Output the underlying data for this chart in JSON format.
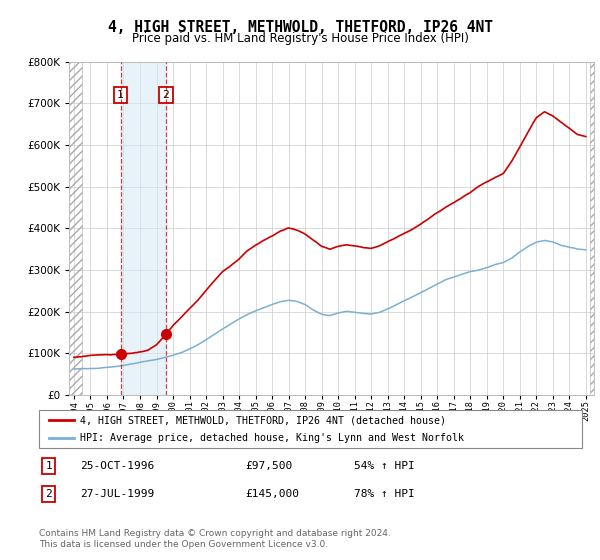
{
  "title": "4, HIGH STREET, METHWOLD, THETFORD, IP26 4NT",
  "subtitle": "Price paid vs. HM Land Registry's House Price Index (HPI)",
  "sale1_date": 1996.82,
  "sale1_price": 97500,
  "sale1_label": "1",
  "sale2_date": 1999.57,
  "sale2_price": 145000,
  "sale2_label": "2",
  "hpi_color": "#7bafd4",
  "price_color": "#cc0000",
  "legend_line1": "4, HIGH STREET, METHWOLD, THETFORD, IP26 4NT (detached house)",
  "legend_line2": "HPI: Average price, detached house, King's Lynn and West Norfolk",
  "table_row1": [
    "1",
    "25-OCT-1996",
    "£97,500",
    "54% ↑ HPI"
  ],
  "table_row2": [
    "2",
    "27-JUL-1999",
    "£145,000",
    "78% ↑ HPI"
  ],
  "footnote": "Contains HM Land Registry data © Crown copyright and database right 2024.\nThis data is licensed under the Open Government Licence v3.0.",
  "ylim": [
    0,
    800000
  ],
  "xlim_start": 1993.7,
  "xlim_end": 2025.5,
  "hatch_end": 1994.5,
  "hatch_start_right": 2025.25,
  "prop_data_t": [
    1994.0,
    1994.5,
    1995.0,
    1995.5,
    1996.0,
    1996.82,
    1997.0,
    1997.5,
    1998.0,
    1998.5,
    1999.0,
    1999.57,
    2000.0,
    2000.5,
    2001.0,
    2001.5,
    2002.0,
    2002.5,
    2003.0,
    2003.5,
    2004.0,
    2004.5,
    2005.0,
    2005.5,
    2006.0,
    2006.5,
    2007.0,
    2007.5,
    2008.0,
    2008.5,
    2009.0,
    2009.5,
    2010.0,
    2010.5,
    2011.0,
    2011.5,
    2012.0,
    2012.5,
    2013.0,
    2013.5,
    2014.0,
    2014.5,
    2015.0,
    2015.5,
    2016.0,
    2016.5,
    2017.0,
    2017.5,
    2018.0,
    2018.5,
    2019.0,
    2019.5,
    2020.0,
    2020.5,
    2021.0,
    2021.5,
    2022.0,
    2022.5,
    2023.0,
    2023.5,
    2024.0,
    2024.5,
    2025.0
  ],
  "prop_data_v": [
    90000,
    92000,
    95000,
    96000,
    97000,
    97500,
    98000,
    100000,
    103000,
    108000,
    120000,
    145000,
    165000,
    185000,
    205000,
    225000,
    248000,
    272000,
    295000,
    310000,
    325000,
    345000,
    358000,
    370000,
    380000,
    392000,
    400000,
    395000,
    385000,
    370000,
    355000,
    348000,
    355000,
    358000,
    355000,
    352000,
    350000,
    355000,
    365000,
    375000,
    385000,
    395000,
    408000,
    422000,
    435000,
    448000,
    460000,
    472000,
    485000,
    500000,
    510000,
    520000,
    530000,
    560000,
    595000,
    630000,
    665000,
    680000,
    670000,
    655000,
    640000,
    625000,
    620000
  ],
  "hpi_data_t": [
    1994.0,
    1994.5,
    1995.0,
    1995.5,
    1996.0,
    1996.5,
    1997.0,
    1997.5,
    1998.0,
    1998.5,
    1999.0,
    1999.5,
    2000.0,
    2000.5,
    2001.0,
    2001.5,
    2002.0,
    2002.5,
    2003.0,
    2003.5,
    2004.0,
    2004.5,
    2005.0,
    2005.5,
    2006.0,
    2006.5,
    2007.0,
    2007.5,
    2008.0,
    2008.5,
    2009.0,
    2009.5,
    2010.0,
    2010.5,
    2011.0,
    2011.5,
    2012.0,
    2012.5,
    2013.0,
    2013.5,
    2014.0,
    2014.5,
    2015.0,
    2015.5,
    2016.0,
    2016.5,
    2017.0,
    2017.5,
    2018.0,
    2018.5,
    2019.0,
    2019.5,
    2020.0,
    2020.5,
    2021.0,
    2021.5,
    2022.0,
    2022.5,
    2023.0,
    2023.5,
    2024.0,
    2024.5,
    2025.0
  ],
  "hpi_data_v": [
    62000,
    63000,
    64000,
    65000,
    67000,
    69000,
    72000,
    76000,
    80000,
    83000,
    86000,
    90000,
    95000,
    102000,
    110000,
    120000,
    132000,
    145000,
    158000,
    170000,
    182000,
    193000,
    202000,
    210000,
    218000,
    225000,
    228000,
    225000,
    218000,
    205000,
    195000,
    192000,
    198000,
    202000,
    200000,
    197000,
    196000,
    200000,
    208000,
    218000,
    228000,
    238000,
    248000,
    258000,
    268000,
    278000,
    285000,
    292000,
    298000,
    302000,
    308000,
    315000,
    320000,
    330000,
    345000,
    358000,
    368000,
    372000,
    368000,
    360000,
    355000,
    350000,
    348000
  ]
}
